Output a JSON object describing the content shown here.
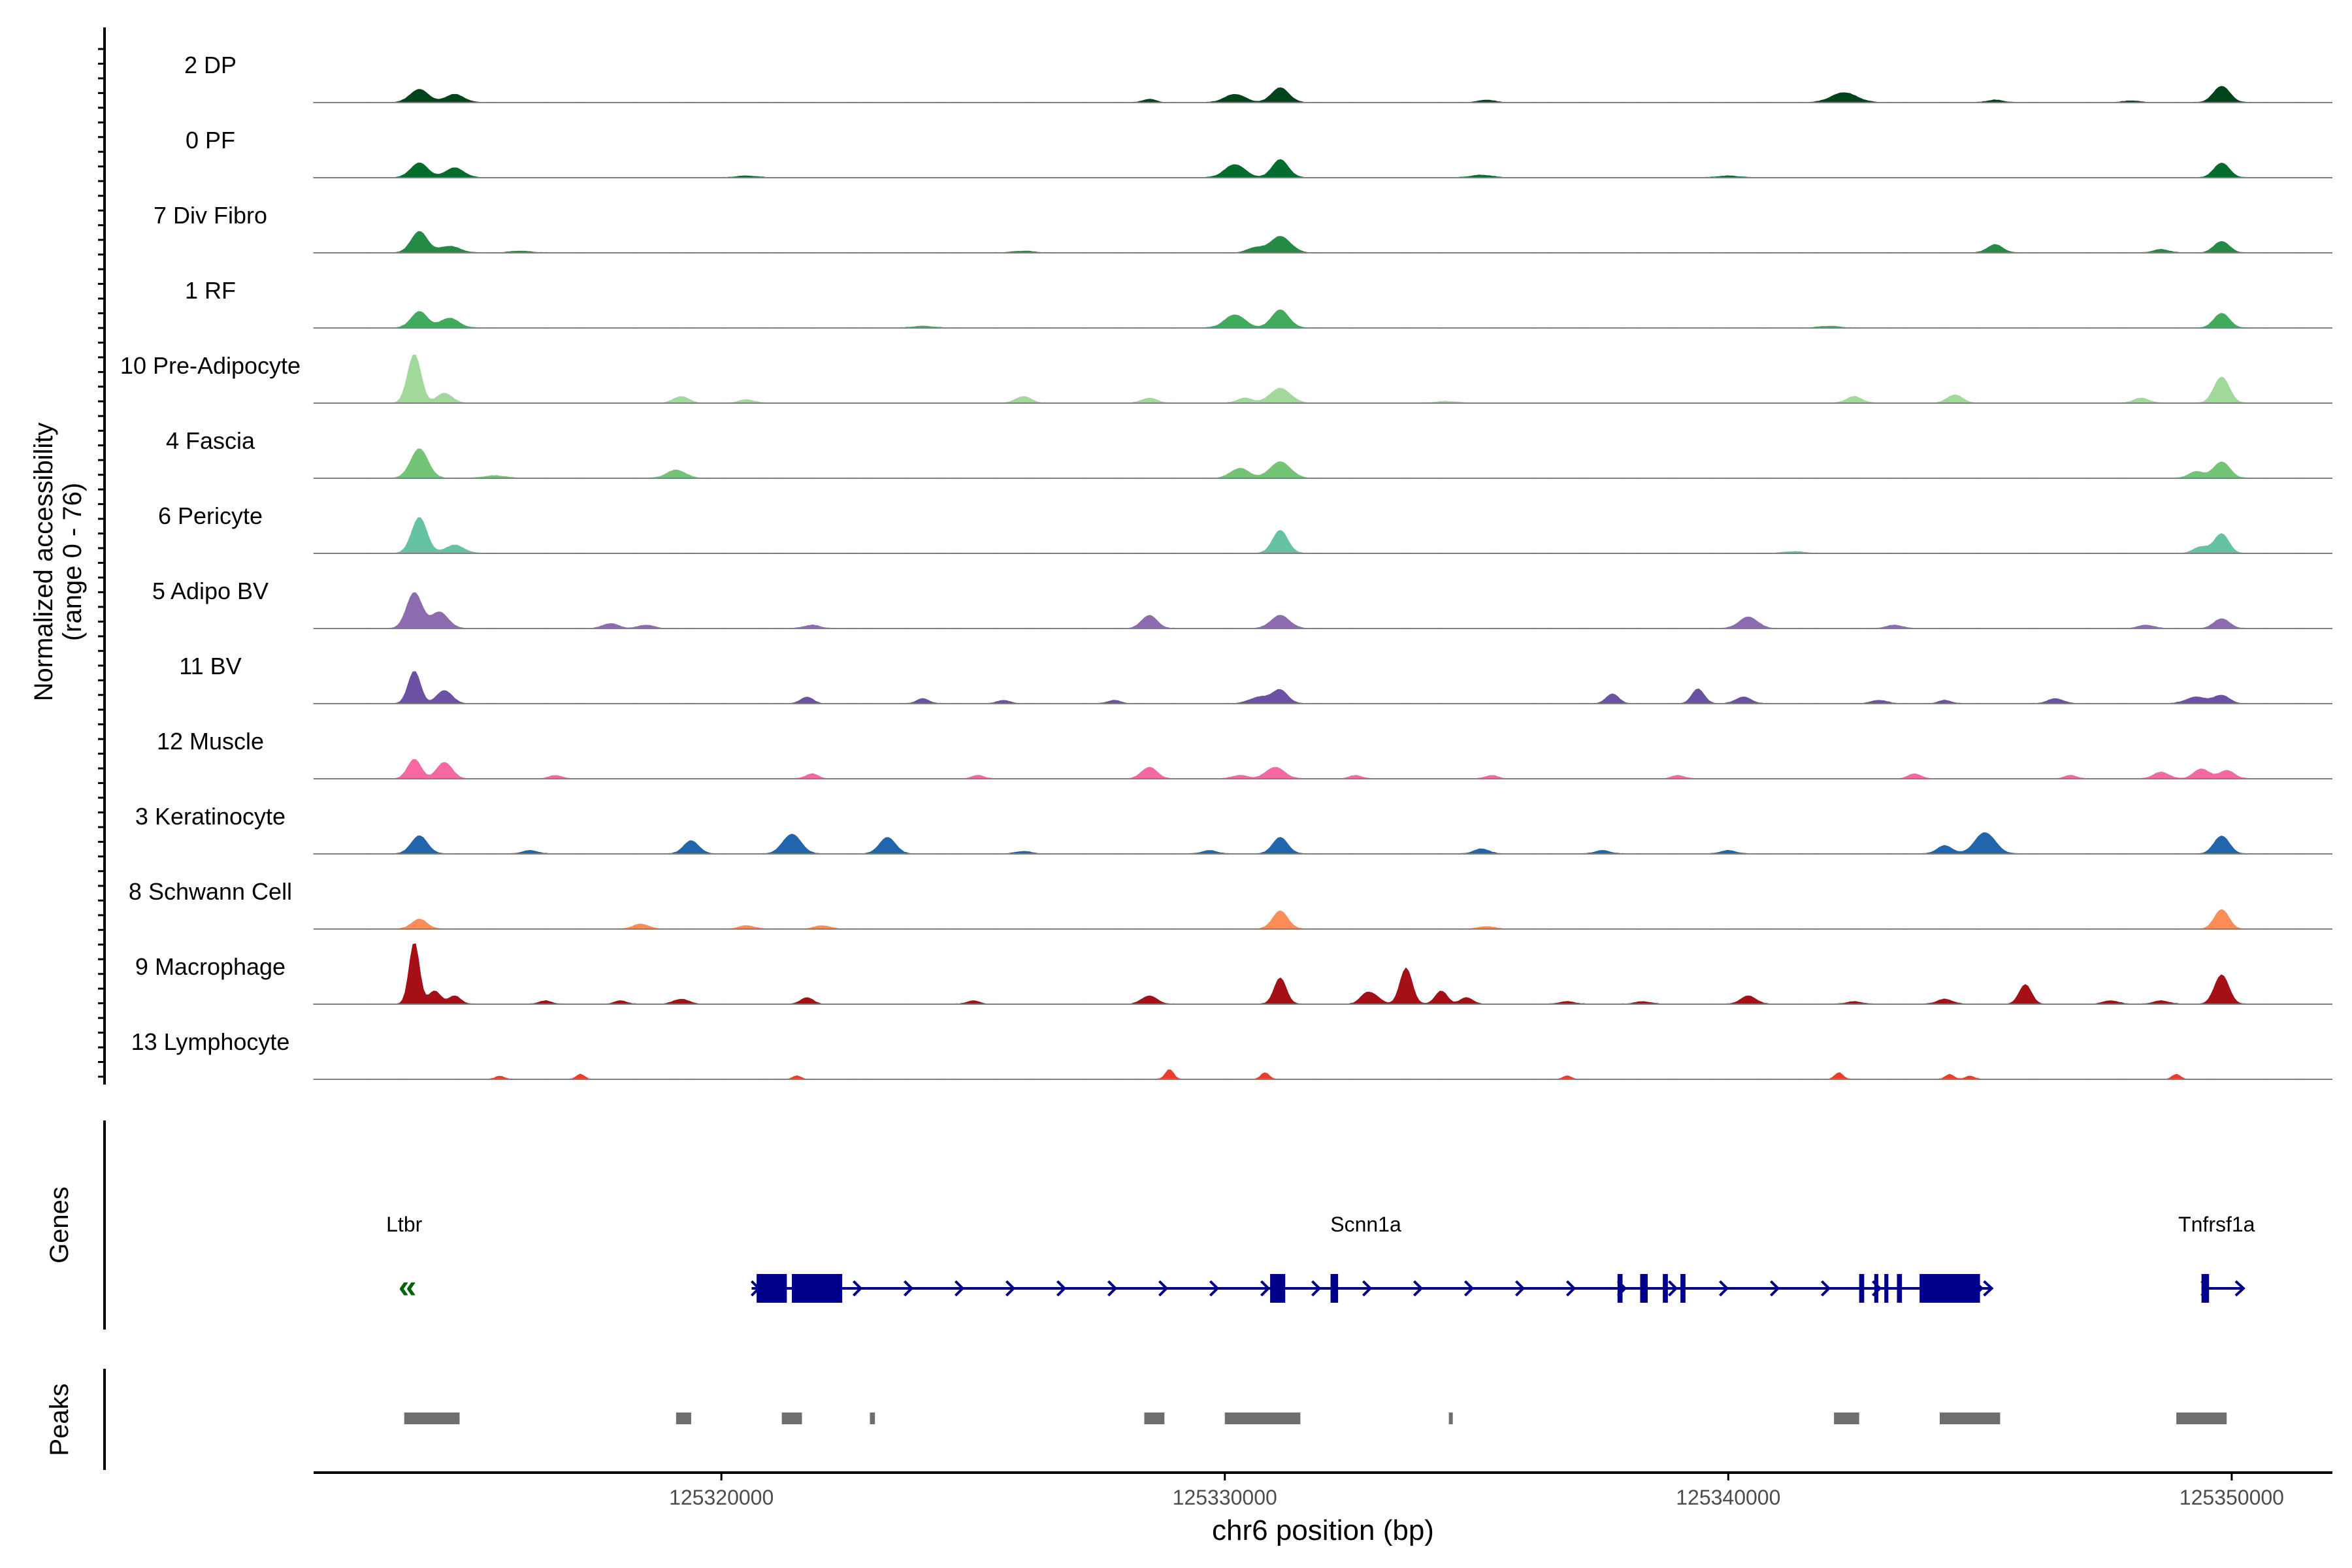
{
  "chart_data": {
    "type": "area",
    "title": "",
    "chromosome": "chr6",
    "xlabel": "chr6 position (bp)",
    "ylabel_line1": "Normalized accessibility",
    "ylabel_line2": "(range 0 - 76)",
    "y_range": [
      0,
      76
    ],
    "xlim": [
      125311900,
      125352000
    ],
    "x_ticks": [
      125320000,
      125330000,
      125340000,
      125350000
    ],
    "x_tick_labels": [
      "125320000",
      "125330000",
      "125340000",
      "125350000"
    ],
    "panel_labels": {
      "genes": "Genes",
      "peaks": "Peaks"
    },
    "tracks": [
      {
        "name": "2 DP",
        "color": "#00441b",
        "peaks": [
          [
            125314000,
            8,
            180
          ],
          [
            125314700,
            5,
            180
          ],
          [
            125331100,
            9,
            170
          ],
          [
            125330200,
            5,
            200
          ],
          [
            125342300,
            6,
            250
          ],
          [
            125349800,
            10,
            160
          ],
          [
            125328500,
            2,
            120
          ],
          [
            125335200,
            1.5,
            150
          ],
          [
            125345300,
            1.5,
            150
          ],
          [
            125348000,
            1,
            150
          ]
        ]
      },
      {
        "name": "0 PF",
        "color": "#006d2c",
        "peaks": [
          [
            125314000,
            9,
            170
          ],
          [
            125314700,
            6,
            180
          ],
          [
            125330200,
            8,
            200
          ],
          [
            125331100,
            11,
            160
          ],
          [
            125349800,
            9,
            150
          ],
          [
            125335100,
            1.5,
            200
          ],
          [
            125340000,
            1,
            200
          ],
          [
            125320500,
            1,
            200
          ]
        ]
      },
      {
        "name": "7 Div Fibro",
        "color": "#238b45",
        "peaks": [
          [
            125314000,
            13,
            160
          ],
          [
            125314600,
            4,
            200
          ],
          [
            125331100,
            10,
            200
          ],
          [
            125330600,
            3,
            150
          ],
          [
            125345300,
            5,
            150
          ],
          [
            125349800,
            7,
            150
          ],
          [
            125348600,
            2,
            150
          ],
          [
            125316000,
            1,
            200
          ],
          [
            125326000,
            1,
            200
          ]
        ]
      },
      {
        "name": "1 RF",
        "color": "#41ab5d",
        "peaks": [
          [
            125314000,
            10,
            160
          ],
          [
            125314600,
            6,
            180
          ],
          [
            125330200,
            8,
            200
          ],
          [
            125331100,
            11,
            170
          ],
          [
            125349800,
            9,
            150
          ],
          [
            125342000,
            1,
            200
          ],
          [
            125324000,
            1,
            200
          ]
        ]
      },
      {
        "name": "10 Pre-Adipocyte",
        "color": "#a1d99b",
        "peaks": [
          [
            125313900,
            30,
            130
          ],
          [
            125314500,
            6,
            150
          ],
          [
            125331100,
            9,
            200
          ],
          [
            125330400,
            3,
            150
          ],
          [
            125342500,
            4,
            150
          ],
          [
            125344500,
            5,
            150
          ],
          [
            125349800,
            16,
            150
          ],
          [
            125319200,
            4,
            150
          ],
          [
            125320500,
            2,
            150
          ],
          [
            125326000,
            4,
            150
          ],
          [
            125328500,
            3,
            150
          ],
          [
            125334400,
            1,
            200
          ],
          [
            125348200,
            3,
            150
          ]
        ]
      },
      {
        "name": "4 Fascia",
        "color": "#74c476",
        "peaks": [
          [
            125314000,
            18,
            170
          ],
          [
            125319100,
            5,
            180
          ],
          [
            125330300,
            6,
            180
          ],
          [
            125331100,
            10,
            200
          ],
          [
            125349800,
            10,
            160
          ],
          [
            125349300,
            4,
            150
          ],
          [
            125315500,
            1.5,
            200
          ]
        ]
      },
      {
        "name": "6 Pericyte",
        "color": "#66c2a4",
        "peaks": [
          [
            125314000,
            22,
            150
          ],
          [
            125314700,
            5,
            180
          ],
          [
            125331100,
            14,
            150
          ],
          [
            125349800,
            12,
            140
          ],
          [
            125349400,
            4,
            150
          ],
          [
            125341300,
            1,
            200
          ]
        ]
      },
      {
        "name": "5 Adipo BV",
        "color": "#8c6bb1",
        "peaks": [
          [
            125313900,
            22,
            150
          ],
          [
            125314400,
            10,
            170
          ],
          [
            125317800,
            3,
            150
          ],
          [
            125318500,
            2,
            150
          ],
          [
            125321800,
            2,
            150
          ],
          [
            125328500,
            8,
            150
          ],
          [
            125331100,
            8,
            180
          ],
          [
            125340400,
            7,
            180
          ],
          [
            125343300,
            2,
            150
          ],
          [
            125349800,
            6,
            150
          ],
          [
            125348300,
            2,
            150
          ]
        ]
      },
      {
        "name": "11 BV",
        "color": "#6a51a3",
        "peaks": [
          [
            125313900,
            20,
            120
          ],
          [
            125314500,
            8,
            150
          ],
          [
            125321700,
            4,
            120
          ],
          [
            125324000,
            3,
            120
          ],
          [
            125330700,
            4,
            200
          ],
          [
            125331100,
            8,
            150
          ],
          [
            125337700,
            6,
            120
          ],
          [
            125339400,
            9,
            120
          ],
          [
            125340300,
            4,
            150
          ],
          [
            125343000,
            2,
            150
          ],
          [
            125346500,
            3,
            150
          ],
          [
            125349300,
            4,
            200
          ],
          [
            125349800,
            5,
            150
          ],
          [
            125327800,
            2,
            120
          ],
          [
            125325600,
            2,
            120
          ],
          [
            125344300,
            2,
            120
          ]
        ]
      },
      {
        "name": "12 Muscle",
        "color": "#f768a1",
        "peaks": [
          [
            125313900,
            12,
            130
          ],
          [
            125314500,
            10,
            150
          ],
          [
            125316700,
            2,
            120
          ],
          [
            125321800,
            3,
            120
          ],
          [
            125328500,
            7,
            150
          ],
          [
            125331000,
            7,
            180
          ],
          [
            125330300,
            2,
            150
          ],
          [
            125348600,
            4,
            150
          ],
          [
            125349400,
            6,
            150
          ],
          [
            125349900,
            5,
            150
          ],
          [
            125325100,
            2,
            120
          ],
          [
            125332600,
            2,
            120
          ],
          [
            125335300,
            2,
            120
          ],
          [
            125343700,
            3,
            120
          ],
          [
            125339000,
            2,
            120
          ],
          [
            125346800,
            2,
            120
          ]
        ]
      },
      {
        "name": "3 Keratinocyte",
        "color": "#2166ac",
        "peaks": [
          [
            125314000,
            11,
            160
          ],
          [
            125319400,
            8,
            150
          ],
          [
            125321400,
            12,
            180
          ],
          [
            125323300,
            10,
            160
          ],
          [
            125331100,
            10,
            150
          ],
          [
            125335100,
            3,
            150
          ],
          [
            125337500,
            2,
            150
          ],
          [
            125340000,
            2,
            150
          ],
          [
            125344300,
            5,
            150
          ],
          [
            125345100,
            13,
            200
          ],
          [
            125349800,
            11,
            150
          ],
          [
            125329700,
            2,
            150
          ],
          [
            125316200,
            2,
            150
          ],
          [
            125326000,
            1.5,
            150
          ]
        ]
      },
      {
        "name": "8 Schwann Cell",
        "color": "#fc8d59",
        "peaks": [
          [
            125314000,
            6,
            150
          ],
          [
            125318400,
            3,
            150
          ],
          [
            125320500,
            2,
            150
          ],
          [
            125322000,
            2,
            150
          ],
          [
            125331100,
            11,
            150
          ],
          [
            125349800,
            12,
            140
          ],
          [
            125335200,
            1.5,
            150
          ]
        ]
      },
      {
        "name": "9 Macrophage",
        "color": "#a50f15",
        "peaks": [
          [
            125313900,
            38,
            100
          ],
          [
            125314300,
            8,
            120
          ],
          [
            125314700,
            5,
            120
          ],
          [
            125319200,
            3,
            150
          ],
          [
            125321700,
            4,
            120
          ],
          [
            125328500,
            5,
            150
          ],
          [
            125331100,
            16,
            120
          ],
          [
            125332800,
            6,
            120
          ],
          [
            125333000,
            4,
            120
          ],
          [
            125333600,
            22,
            120
          ],
          [
            125334300,
            8,
            120
          ],
          [
            125334800,
            4,
            120
          ],
          [
            125340400,
            5,
            150
          ],
          [
            125344300,
            3,
            150
          ],
          [
            125345900,
            12,
            120
          ],
          [
            125349800,
            18,
            140
          ],
          [
            125316500,
            2,
            120
          ],
          [
            125318000,
            2,
            120
          ],
          [
            125325000,
            2,
            120
          ],
          [
            125336800,
            1.5,
            150
          ],
          [
            125338300,
            1.5,
            150
          ],
          [
            125342500,
            1.5,
            150
          ],
          [
            125347600,
            2,
            150
          ],
          [
            125348600,
            2,
            150
          ]
        ]
      },
      {
        "name": "13 Lymphocyte",
        "color": "#ef3b2c",
        "peaks": [
          [
            125315600,
            2,
            80
          ],
          [
            125317200,
            3,
            80
          ],
          [
            125321500,
            2,
            80
          ],
          [
            125328900,
            6,
            80
          ],
          [
            125330800,
            4,
            80
          ],
          [
            125336800,
            2,
            80
          ],
          [
            125342200,
            4,
            80
          ],
          [
            125344400,
            3,
            80
          ],
          [
            125344800,
            2,
            80
          ],
          [
            125348900,
            3,
            80
          ]
        ]
      }
    ],
    "genes": [
      {
        "name": "Ltbr",
        "color": "#006400",
        "strand": "-",
        "label_pos": 125313700,
        "start": 125313700,
        "end": 125314000,
        "exons": [],
        "arrow_glyph": "«"
      },
      {
        "name": "Scnn1a",
        "color": "#00008b",
        "strand": "+",
        "label_pos": 125332800,
        "start": 125320600,
        "end": 125345000,
        "exons": [
          [
            125320700,
            125321300
          ],
          [
            125321400,
            125322400
          ],
          [
            125330900,
            125331200
          ],
          [
            125332100,
            125332250
          ],
          [
            125337800,
            125337900
          ],
          [
            125338250,
            125338400
          ],
          [
            125338700,
            125338800
          ],
          [
            125339050,
            125339150
          ],
          [
            125342600,
            125342700
          ],
          [
            125342900,
            125342980
          ],
          [
            125343100,
            125343180
          ],
          [
            125343350,
            125343450
          ],
          [
            125343800,
            125345000
          ]
        ]
      },
      {
        "name": "Tnfrsf1a",
        "color": "#00008b",
        "strand": "+",
        "label_pos": 125349700,
        "start": 125349400,
        "end": 125350000,
        "exons": [
          [
            125349400,
            125349550
          ]
        ]
      }
    ],
    "peak_regions": [
      [
        125313700,
        125314800
      ],
      [
        125319100,
        125319400
      ],
      [
        125321200,
        125321600
      ],
      [
        125322950,
        125323050
      ],
      [
        125328400,
        125328800
      ],
      [
        125330000,
        125331500
      ],
      [
        125334450,
        125334520
      ],
      [
        125342100,
        125342600
      ],
      [
        125344200,
        125345400
      ],
      [
        125348900,
        125349900
      ]
    ]
  }
}
